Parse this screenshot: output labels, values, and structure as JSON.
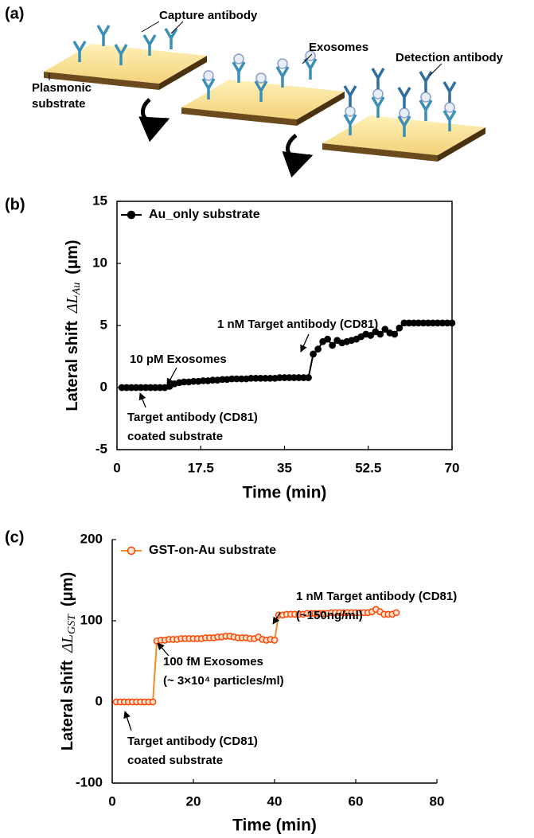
{
  "panel_a": {
    "label": "(a)",
    "capture_antibody": "Capture antibody",
    "exosomes": "Exosomes",
    "detection_antibody": "Detection antibody",
    "substrate": [
      "Plasmonic",
      "substrate"
    ]
  },
  "chart_data": [
    {
      "type": "line",
      "panel_label": "(b)",
      "xlabel": "Time (min)",
      "ylabel": {
        "text": "Lateral shift",
        "symbol": "ΔL",
        "sub": "Au",
        "unit": "(μm)"
      },
      "x": [
        1,
        2,
        3,
        4,
        5,
        6,
        7,
        8,
        9,
        10,
        11,
        12,
        13,
        14,
        15,
        16,
        17,
        18,
        19,
        20,
        21,
        22,
        23,
        24,
        25,
        26,
        27,
        28,
        29,
        30,
        31,
        32,
        33,
        34,
        35,
        36,
        37,
        38,
        39,
        40,
        41,
        42,
        43,
        44,
        45,
        46,
        47,
        48,
        49,
        50,
        51,
        52,
        53,
        54,
        55,
        56,
        57,
        58,
        59,
        60,
        61,
        62,
        63,
        64,
        65,
        66,
        67,
        68,
        69,
        70
      ],
      "series": [
        {
          "name": "Au_only substrate",
          "color": "#000000",
          "marker_face": "#000000",
          "values": [
            0,
            0,
            0,
            0,
            0,
            0,
            0,
            0,
            0,
            0,
            0.1,
            0.3,
            0.4,
            0.45,
            0.45,
            0.5,
            0.5,
            0.55,
            0.55,
            0.6,
            0.6,
            0.65,
            0.65,
            0.7,
            0.7,
            0.7,
            0.7,
            0.75,
            0.75,
            0.75,
            0.75,
            0.75,
            0.75,
            0.8,
            0.8,
            0.8,
            0.8,
            0.8,
            0.8,
            0.8,
            2.7,
            3.1,
            3.7,
            3.9,
            3.4,
            3.8,
            3.6,
            3.7,
            3.8,
            3.9,
            4.1,
            4.3,
            4.2,
            4.5,
            4.3,
            4.7,
            4.4,
            4.3,
            4.8,
            5.2,
            5.2,
            5.2,
            5.2,
            5.2,
            5.2,
            5.2,
            5.2,
            5.2,
            5.2,
            5.2
          ]
        }
      ],
      "line_color": "#000000",
      "xlim": [
        0,
        70
      ],
      "xticks": [
        0,
        17.5,
        35,
        52.5,
        70
      ],
      "ylim": [
        -5,
        15
      ],
      "yticks": [
        -5,
        0,
        5,
        10,
        15
      ],
      "legend": "upper left",
      "frame": true,
      "annotations": [
        {
          "lines": [
            "10 pM Exosomes"
          ]
        },
        {
          "lines": [
            "1 nM Target antibody (CD81)"
          ]
        },
        {
          "lines": [
            "Target antibody (CD81)",
            "coated substrate"
          ]
        }
      ]
    },
    {
      "type": "line",
      "panel_label": "(c)",
      "xlabel": "Time (min)",
      "ylabel": {
        "text": "Lateral shift",
        "symbol": "ΔL",
        "sub": "GST",
        "unit": "(μm)"
      },
      "x": [
        1,
        2,
        3,
        4,
        5,
        6,
        7,
        8,
        9,
        10,
        11,
        12,
        13,
        14,
        15,
        16,
        17,
        18,
        19,
        20,
        21,
        22,
        23,
        24,
        25,
        26,
        27,
        28,
        29,
        30,
        31,
        32,
        33,
        34,
        35,
        36,
        37,
        38,
        39,
        40,
        41,
        42,
        43,
        44,
        45,
        46,
        47,
        48,
        49,
        50,
        51,
        52,
        53,
        54,
        55,
        56,
        57,
        58,
        59,
        60,
        61,
        62,
        63,
        64,
        65,
        66,
        67,
        68,
        69,
        70
      ],
      "series": [
        {
          "name": "GST-on-Au substrate",
          "color": "#ff4500",
          "marker_face": "#ffe3cf",
          "values": [
            0,
            0,
            0,
            0,
            0,
            0,
            0,
            0,
            0,
            0,
            75,
            76,
            76,
            77,
            77,
            77,
            78,
            78,
            78,
            78,
            78,
            78,
            79,
            79,
            79,
            80,
            80,
            81,
            81,
            80,
            79,
            79,
            79,
            78,
            78,
            80,
            77,
            76,
            77,
            76,
            107,
            107,
            108,
            108,
            108,
            108,
            108,
            109,
            109,
            109,
            109,
            109,
            109,
            110,
            110,
            110,
            110,
            110,
            110,
            110,
            110,
            110,
            110,
            111,
            114,
            111,
            108,
            108,
            108,
            110
          ]
        }
      ],
      "line_color": "#f28c28",
      "xlim": [
        0,
        80
      ],
      "xticks": [
        0,
        20,
        40,
        60,
        80
      ],
      "ylim": [
        -100,
        200
      ],
      "yticks": [
        -100,
        0,
        100,
        200
      ],
      "legend": "upper left",
      "frame": false,
      "annotations": [
        {
          "lines": [
            "1 nM Target antibody (CD81)",
            "(~150ng/ml)"
          ]
        },
        {
          "lines": [
            "100 fM Exosomes",
            "(~ 3×10⁴ particles/ml)"
          ]
        },
        {
          "lines": [
            "Target antibody (CD81)",
            "coated substrate"
          ]
        }
      ]
    }
  ]
}
